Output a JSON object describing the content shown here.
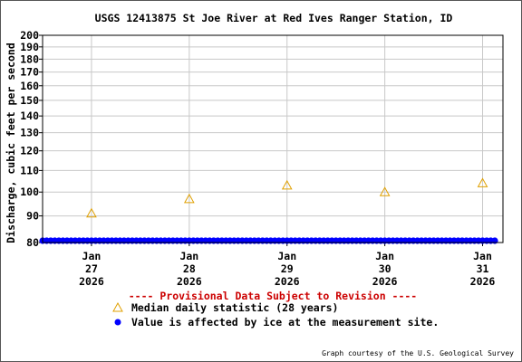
{
  "chart_data": {
    "type": "scatter",
    "title": "USGS 12413875 St Joe River at Red Ives Ranger Station, ID",
    "ylabel": "Discharge, cubic feet per second",
    "y_scale": "log",
    "ylim": [
      80,
      200
    ],
    "y_ticks": [
      80,
      90,
      100,
      110,
      120,
      130,
      140,
      150,
      160,
      170,
      180,
      190,
      200
    ],
    "grid": true,
    "x_range": [
      "2026-01-26T12:00",
      "2026-01-31T05:00"
    ],
    "x_ticks": [
      {
        "date": "2026-01-27",
        "month": "Jan",
        "day": "27",
        "year": "2026"
      },
      {
        "date": "2026-01-28",
        "month": "Jan",
        "day": "28",
        "year": "2026"
      },
      {
        "date": "2026-01-29",
        "month": "Jan",
        "day": "29",
        "year": "2026"
      },
      {
        "date": "2026-01-30",
        "month": "Jan",
        "day": "30",
        "year": "2026"
      },
      {
        "date": "2026-01-31",
        "month": "Jan",
        "day": "31",
        "year": "2026"
      }
    ],
    "series": [
      {
        "name": "Median daily statistic (28 years)",
        "marker": "triangle",
        "color": "#e0a000",
        "points": [
          {
            "x": "2026-01-27T00:00",
            "y": 91
          },
          {
            "x": "2026-01-28T00:00",
            "y": 97
          },
          {
            "x": "2026-01-29T00:00",
            "y": 103
          },
          {
            "x": "2026-01-30T00:00",
            "y": 100
          },
          {
            "x": "2026-01-31T00:00",
            "y": 104
          }
        ]
      },
      {
        "name": "Value is affected by ice at the measurement site.",
        "marker": "circle",
        "color": "#0000ff",
        "start": "2026-01-26T12:00",
        "end": "2026-01-31T03:00",
        "interval_hours": 1,
        "value": 80
      }
    ]
  },
  "legend": {
    "provisional": "---- Provisional Data Subject to Revision ----",
    "provisional_color": "#cc0000"
  },
  "credit": "Graph courtesy of the U.S. Geological Survey"
}
